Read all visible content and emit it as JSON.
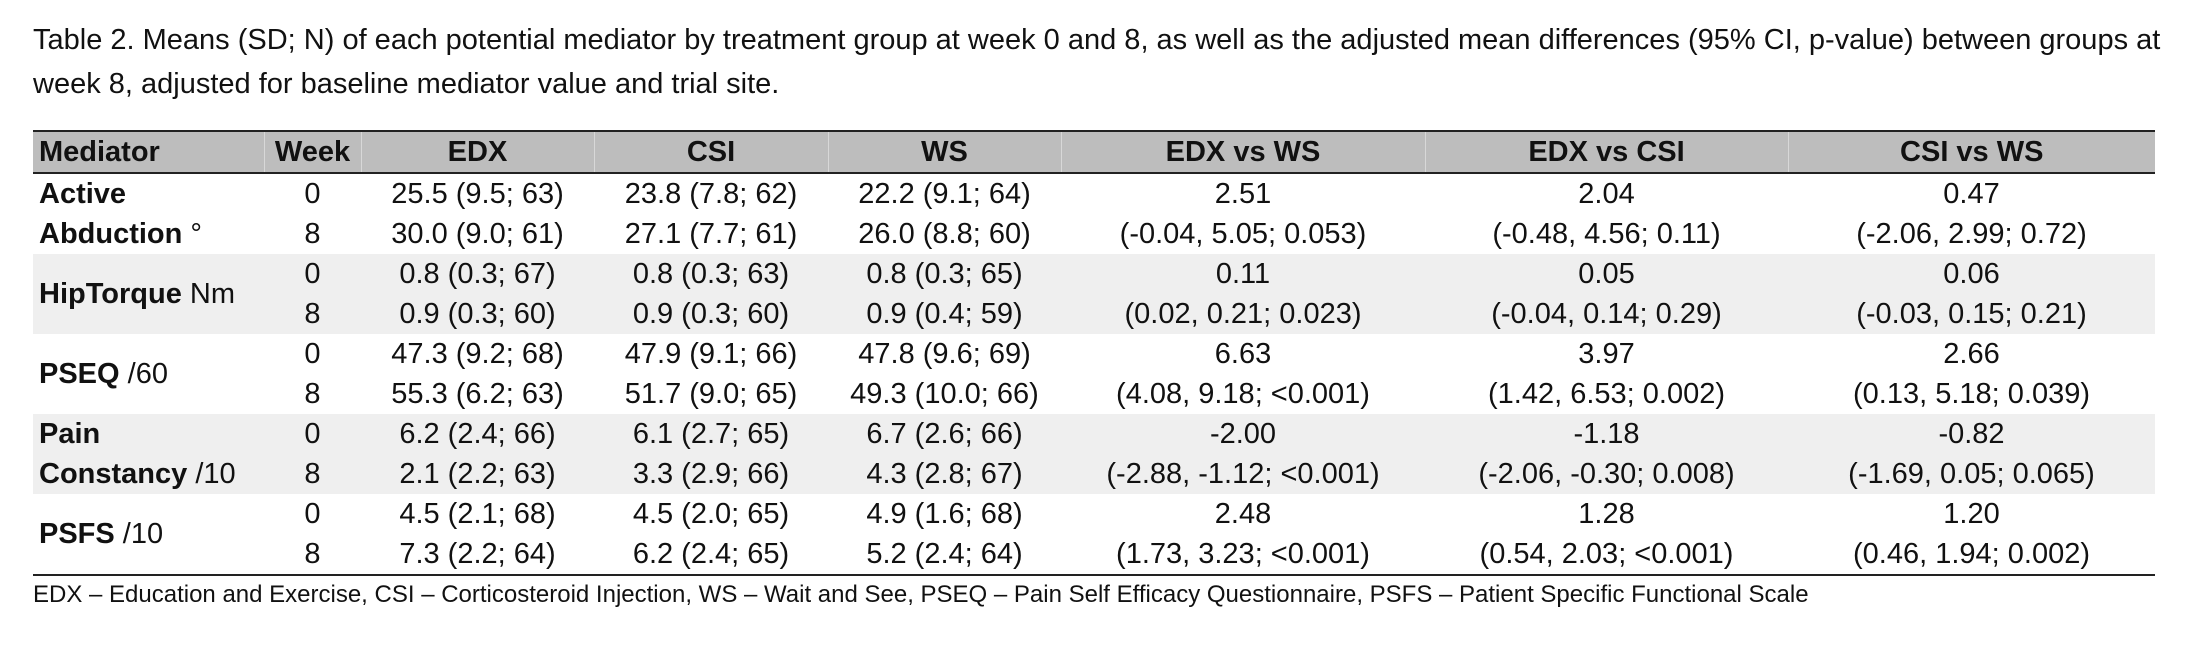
{
  "caption": "Table 2. Means (SD; N) of each potential mediator by treatment group at week 0 and 8, as well as the adjusted mean differences (95% CI, p-value) between groups at week 8, adjusted for baseline mediator value and trial site.",
  "headers": {
    "mediator": "Mediator",
    "week": "Week",
    "edx": "EDX",
    "csi": "CSI",
    "ws": "WS",
    "edx_vs_ws": "EDX vs WS",
    "edx_vs_csi": "EDX vs CSI",
    "csi_vs_ws": "CSI vs WS"
  },
  "rows": [
    {
      "mediator_line1": "Active",
      "mediator_line1_unit": "",
      "mediator_line2": "Abduction",
      "mediator_line2_unit": " °",
      "week0": "0",
      "week8": "8",
      "edx0": "25.5 (9.5;  63)",
      "csi0": "23.8 (7.8;  62)",
      "ws0": "22.2 (9.1;  64)",
      "edx_vs_ws_est": "2.51",
      "edx_vs_csi_est": "2.04",
      "csi_vs_ws_est": "0.47",
      "edx8": "30.0 (9.0;  61)",
      "csi8": "27.1 (7.7;  61)",
      "ws8": "26.0 (8.8;  60)",
      "edx_vs_ws_ci": "(-0.04, 5.05; 0.053)",
      "edx_vs_csi_ci": "(-0.48, 4.56; 0.11)",
      "csi_vs_ws_ci": "(-2.06, 2.99; 0.72)"
    },
    {
      "mediator_line1": "HipTorque",
      "mediator_line1_unit": " Nm",
      "mediator_line2": "",
      "mediator_line2_unit": "",
      "week0": "0",
      "week8": "8",
      "edx0": "0.8 (0.3;  67)",
      "csi0": "0.8 (0.3;  63)",
      "ws0": "0.8 (0.3;  65)",
      "edx_vs_ws_est": "0.11",
      "edx_vs_csi_est": "0.05",
      "csi_vs_ws_est": "0.06",
      "edx8": "0.9 (0.3;  60)",
      "csi8": "0.9 (0.3;  60)",
      "ws8": "0.9 (0.4;  59)",
      "edx_vs_ws_ci": "(0.02, 0.21; 0.023)",
      "edx_vs_csi_ci": "(-0.04, 0.14; 0.29)",
      "csi_vs_ws_ci": "(-0.03, 0.15; 0.21)"
    },
    {
      "mediator_line1": "PSEQ",
      "mediator_line1_unit": " /60",
      "mediator_line2": "",
      "mediator_line2_unit": "",
      "week0": "0",
      "week8": "8",
      "edx0": "47.3 (9.2;  68)",
      "csi0": "47.9 (9.1;  66)",
      "ws0": "47.8 (9.6;  69)",
      "edx_vs_ws_est": "6.63",
      "edx_vs_csi_est": "3.97",
      "csi_vs_ws_est": "2.66",
      "edx8": "55.3 (6.2;  63)",
      "csi8": "51.7 (9.0;  65)",
      "ws8": "49.3 (10.0; 66)",
      "edx_vs_ws_ci": "(4.08, 9.18; <0.001)",
      "edx_vs_csi_ci": "(1.42, 6.53; 0.002)",
      "csi_vs_ws_ci": "(0.13, 5.18; 0.039)"
    },
    {
      "mediator_line1": "Pain",
      "mediator_line1_unit": "",
      "mediator_line2": "Constancy",
      "mediator_line2_unit": " /10",
      "week0": "0",
      "week8": "8",
      "edx0": "6.2 (2.4;  66)",
      "csi0": "6.1 (2.7;  65)",
      "ws0": "6.7 (2.6;  66)",
      "edx_vs_ws_est": "-2.00",
      "edx_vs_csi_est": "-1.18",
      "csi_vs_ws_est": "-0.82",
      "edx8": "2.1 (2.2;  63)",
      "csi8": "3.3 (2.9;  66)",
      "ws8": "4.3 (2.8;  67)",
      "edx_vs_ws_ci": "(-2.88, -1.12; <0.001)",
      "edx_vs_csi_ci": "(-2.06, -0.30; 0.008)",
      "csi_vs_ws_ci": "(-1.69, 0.05; 0.065)"
    },
    {
      "mediator_line1": "PSFS",
      "mediator_line1_unit": " /10",
      "mediator_line2": "",
      "mediator_line2_unit": "",
      "week0": "0",
      "week8": "8",
      "edx0": "4.5 (2.1;  68)",
      "csi0": "4.5 (2.0;  65)",
      "ws0": "4.9 (1.6;  68)",
      "edx_vs_ws_est": "2.48",
      "edx_vs_csi_est": "1.28",
      "csi_vs_ws_est": "1.20",
      "edx8": "7.3 (2.2;  64)",
      "csi8": "6.2 (2.4;  65)",
      "ws8": "5.2 (2.4;  64)",
      "edx_vs_ws_ci": "(1.73, 3.23; <0.001)",
      "edx_vs_csi_ci": "(0.54, 2.03; <0.001)",
      "csi_vs_ws_ci": "(0.46, 1.94; 0.002)"
    }
  ],
  "footnote": "EDX – Education and Exercise, CSI – Corticosteroid Injection, WS – Wait and See, PSEQ – Pain Self Efficacy Questionnaire, PSFS – Patient Specific Functional Scale"
}
